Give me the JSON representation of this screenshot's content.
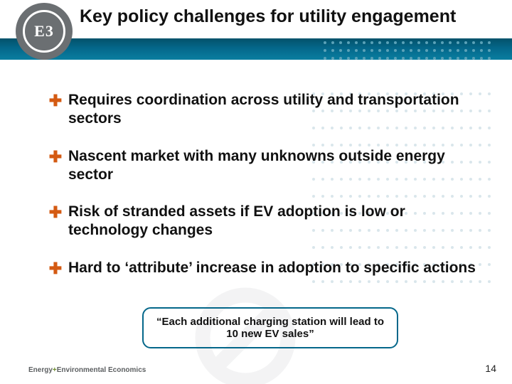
{
  "title": "Key policy challenges for utility engagement",
  "logo_text": "E3",
  "colors": {
    "teal_gradient_top": "#03516a",
    "teal_gradient_mid": "#04678a",
    "teal_gradient_bot": "#0a7ea0",
    "bullet_marker": "#d45a12",
    "body_text": "#111111",
    "dot_light": "#d9e6ec",
    "dot_band": "#5aa2b8",
    "no_symbol": "#bfc3c6"
  },
  "bullets": [
    "Requires coordination across utility and transportation sectors",
    "Nascent market with many unknowns outside energy sector",
    "Risk of stranded assets if EV adoption is low or technology changes",
    "Hard to ‘attribute’ increase in adoption to specific actions"
  ],
  "callout": "“Each additional charging station will lead to 10 new EV sales”",
  "footer": {
    "brand_a": "Energy",
    "plus": "+",
    "brand_b": "Environmental Economics"
  },
  "page_number": "14",
  "decorative": {
    "band_dot_rows": 3,
    "band_dots_per_row": 22,
    "content_dot_rows": 12,
    "content_dots_per_row": 20
  }
}
